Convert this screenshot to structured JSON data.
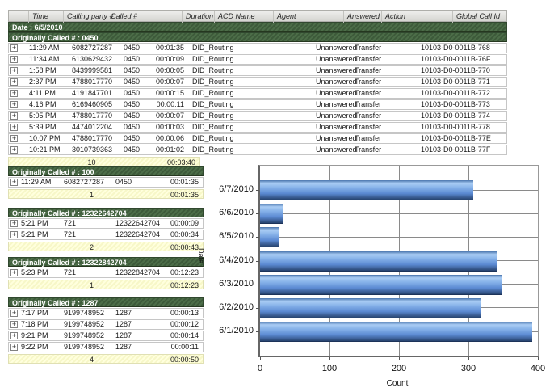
{
  "icons": {
    "expand": "+"
  },
  "report": {
    "header_columns": [
      "",
      "Time",
      "Calling party #",
      "Called #",
      "Duration",
      "ACD Name",
      "Agent",
      "Answered",
      "Action",
      "Global Call Id"
    ],
    "date_band": "Date : 6/5/2010",
    "group_band": "Originally Called # : 0450",
    "rows": [
      {
        "time": "11:29 AM",
        "calling_party": "6082727287",
        "called": "0450",
        "duration": "00:01:35",
        "acd_name": "DID_Routing",
        "agent": "",
        "answered": "Unanswered",
        "action": "Transfer",
        "global_call_id": "10103-D0-0011B-768"
      },
      {
        "time": "11:34 AM",
        "calling_party": "6130629432",
        "called": "0450",
        "duration": "00:00:09",
        "acd_name": "DID_Routing",
        "agent": "",
        "answered": "Unanswered",
        "action": "Transfer",
        "global_call_id": "10103-D0-0011B-76F"
      },
      {
        "time": "1:58 PM",
        "calling_party": "8439999581",
        "called": "0450",
        "duration": "00:00:05",
        "acd_name": "DID_Routing",
        "agent": "",
        "answered": "Unanswered",
        "action": "Transfer",
        "global_call_id": "10103-D0-0011B-770"
      },
      {
        "time": "2:37 PM",
        "calling_party": "4788017770",
        "called": "0450",
        "duration": "00:00:07",
        "acd_name": "DID_Routing",
        "agent": "",
        "answered": "Unanswered",
        "action": "Transfer",
        "global_call_id": "10103-D0-0011B-771"
      },
      {
        "time": "4:11 PM",
        "calling_party": "4191847701",
        "called": "0450",
        "duration": "00:00:15",
        "acd_name": "DID_Routing",
        "agent": "",
        "answered": "Unanswered",
        "action": "Transfer",
        "global_call_id": "10103-D0-0011B-772"
      },
      {
        "time": "4:16 PM",
        "calling_party": "6169460905",
        "called": "0450",
        "duration": "00:00:11",
        "acd_name": "DID_Routing",
        "agent": "",
        "answered": "Unanswered",
        "action": "Transfer",
        "global_call_id": "10103-D0-0011B-773"
      },
      {
        "time": "5:05 PM",
        "calling_party": "4788017770",
        "called": "0450",
        "duration": "00:00:07",
        "acd_name": "DID_Routing",
        "agent": "",
        "answered": "Unanswered",
        "action": "Transfer",
        "global_call_id": "10103-D0-0011B-774"
      },
      {
        "time": "5:39 PM",
        "calling_party": "4474012204",
        "called": "0450",
        "duration": "00:00:03",
        "acd_name": "DID_Routing",
        "agent": "",
        "answered": "Unanswered",
        "action": "Transfer",
        "global_call_id": "10103-D0-0011B-778"
      },
      {
        "time": "10:07 PM",
        "calling_party": "4788017770",
        "called": "0450",
        "duration": "00:00:06",
        "acd_name": "DID_Routing",
        "agent": "",
        "answered": "Unanswered",
        "action": "Transfer",
        "global_call_id": "10103-D0-0011B-77E"
      },
      {
        "time": "10:21 PM",
        "calling_party": "3010739363",
        "called": "0450",
        "duration": "00:01:02",
        "acd_name": "DID_Routing",
        "agent": "",
        "answered": "Unanswered",
        "action": "Transfer",
        "global_call_id": "10103-D0-0011B-77F"
      }
    ],
    "summary": {
      "count": "10",
      "total_duration": "00:03:40"
    }
  },
  "sections": [
    {
      "band": "Originally Called # : 100",
      "rows": [
        {
          "time": "11:29 AM",
          "calling_party": "6082727287",
          "called": "0450",
          "duration": "00:01:35"
        }
      ],
      "summary": {
        "count": "1",
        "total_duration": "00:01:35"
      }
    },
    {
      "band": "Originally Called # : 12322642704",
      "rows": [
        {
          "time": "5:21 PM",
          "calling_party": "721",
          "called": "12322642704",
          "duration": "00:00:09"
        },
        {
          "time": "5:21 PM",
          "calling_party": "721",
          "called": "12322642704",
          "duration": "00:00:34"
        }
      ],
      "summary": {
        "count": "2",
        "total_duration": "00:00:43"
      }
    },
    {
      "band": "Originally Called # : 12322842704",
      "rows": [
        {
          "time": "5:23 PM",
          "calling_party": "721",
          "called": "12322842704",
          "duration": "00:12:23"
        }
      ],
      "summary": {
        "count": "1",
        "total_duration": "00:12:23"
      }
    },
    {
      "band": "Originally Called # : 1287",
      "rows": [
        {
          "time": "7:17 PM",
          "calling_party": "9199748952",
          "called": "1287",
          "duration": "00:00:13"
        },
        {
          "time": "7:18 PM",
          "calling_party": "9199748952",
          "called": "1287",
          "duration": "00:00:12"
        },
        {
          "time": "9:21 PM",
          "calling_party": "9199748952",
          "called": "1287",
          "duration": "00:00:14"
        },
        {
          "time": "9:22 PM",
          "calling_party": "9199748952",
          "called": "1287",
          "duration": "00:00:11"
        }
      ],
      "summary": {
        "count": "4",
        "total_duration": "00:00:50"
      }
    }
  ],
  "chart_data": {
    "type": "bar",
    "orientation": "horizontal",
    "order": "top-to-bottom",
    "categories": [
      "6/7/2010",
      "6/6/2010",
      "6/5/2010",
      "6/4/2010",
      "6/3/2010",
      "6/2/2010",
      "6/1/2010"
    ],
    "values": [
      307,
      33,
      28,
      341,
      348,
      319,
      392
    ],
    "xlabel": "Count",
    "ylabel": "Date",
    "xticks": [
      "0",
      "100",
      "200",
      "300",
      "400"
    ],
    "xlim": [
      0,
      400
    ],
    "grid": true,
    "legend": "none",
    "bar_color_light": "#a9ccf4",
    "bar_color_mid": "#5b8ad2",
    "bar_color_dark": "#27436f"
  }
}
